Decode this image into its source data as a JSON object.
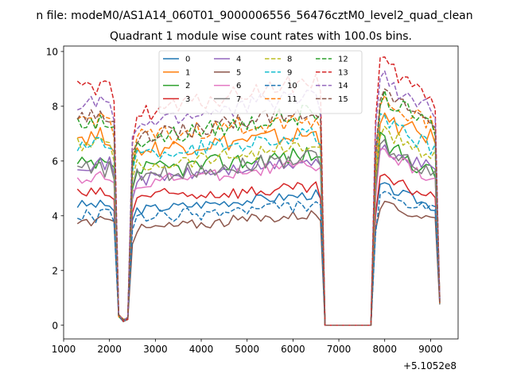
{
  "chart_data": {
    "type": "line",
    "suptitle": "n file: modeM0/AS1A14_060T01_9000006556_56476cztM0_level2_quad_clean",
    "title": "Quadrant 1 module wise count rates with 100.0s bins.",
    "xlabel": "",
    "ylabel": "",
    "x_offset_label": "+5.1052e8",
    "xlim": [
      1000,
      9600
    ],
    "ylim": [
      -0.5,
      10.2
    ],
    "xticks": [
      1000,
      2000,
      3000,
      4000,
      5000,
      6000,
      7000,
      8000,
      9000
    ],
    "xtick_labels": [
      "1000",
      "2000",
      "3000",
      "4000",
      "5000",
      "6000",
      "7000",
      "8000",
      "9000"
    ],
    "yticks": [
      0,
      2,
      4,
      6,
      8,
      10
    ],
    "ytick_labels": [
      "0",
      "2",
      "4",
      "6",
      "8",
      "10"
    ],
    "legend_loc": "upper center",
    "legend_ncol": 4,
    "x": {
      "start": 1300,
      "end": 9200,
      "step": 100
    },
    "segments": [
      {
        "name": "active1",
        "from": 1300,
        "to": 2100
      },
      {
        "name": "dip",
        "points": [
          [
            2200,
            0.35
          ],
          [
            2300,
            0.18
          ],
          [
            2400,
            0.25
          ]
        ]
      },
      {
        "name": "active2",
        "from": 2500,
        "to": 6600
      },
      {
        "name": "zero",
        "from": 6700,
        "to": 7700
      },
      {
        "name": "active3",
        "from": 7800,
        "to": 9100
      },
      {
        "name": "end",
        "points": [
          [
            9200,
            0.9
          ]
        ]
      }
    ],
    "series": [
      {
        "name": "0",
        "color": "#1f77b4",
        "dashed": false,
        "levels": [
          4.4,
          4.2,
          4.8,
          4.3
        ],
        "noise": 0.18
      },
      {
        "name": "1",
        "color": "#ff7f0e",
        "dashed": false,
        "levels": [
          6.9,
          6.4,
          7.0,
          6.8
        ],
        "noise": 0.35
      },
      {
        "name": "2",
        "color": "#2ca02c",
        "dashed": false,
        "levels": [
          5.8,
          5.6,
          6.3,
          5.5
        ],
        "noise": 0.35
      },
      {
        "name": "3",
        "color": "#d62728",
        "dashed": false,
        "levels": [
          4.8,
          4.7,
          5.0,
          4.7
        ],
        "noise": 0.25
      },
      {
        "name": "4",
        "color": "#9467bd",
        "dashed": false,
        "levels": [
          5.9,
          5.3,
          6.0,
          5.7
        ],
        "noise": 0.25
      },
      {
        "name": "5",
        "color": "#8c564b",
        "dashed": false,
        "levels": [
          3.8,
          3.5,
          4.1,
          3.9
        ],
        "noise": 0.2
      },
      {
        "name": "6",
        "color": "#e377c2",
        "dashed": false,
        "levels": [
          5.4,
          5.2,
          5.9,
          5.3
        ],
        "noise": 0.25
      },
      {
        "name": "7",
        "color": "#7f7f7f",
        "dashed": false,
        "levels": [
          5.7,
          5.4,
          6.2,
          5.5
        ],
        "noise": 0.3
      },
      {
        "name": "8",
        "color": "#bcbd22",
        "dashed": true,
        "levels": [
          6.6,
          5.8,
          6.6,
          6.2
        ],
        "noise": 0.3
      },
      {
        "name": "9",
        "color": "#17becf",
        "dashed": true,
        "levels": [
          6.6,
          6.2,
          7.0,
          6.4
        ],
        "noise": 0.3
      },
      {
        "name": "10",
        "color": "#1f77b4",
        "dashed": true,
        "levels": [
          4.0,
          3.9,
          4.4,
          4.1
        ],
        "noise": 0.25
      },
      {
        "name": "11",
        "color": "#ff7f0e",
        "dashed": true,
        "levels": [
          7.5,
          6.8,
          7.6,
          7.3
        ],
        "noise": 0.35
      },
      {
        "name": "12",
        "color": "#2ca02c",
        "dashed": true,
        "levels": [
          7.4,
          6.7,
          7.8,
          7.2
        ],
        "noise": 0.35
      },
      {
        "name": "13",
        "color": "#d62728",
        "dashed": true,
        "levels": [
          8.6,
          7.7,
          9.0,
          8.1
        ],
        "noise": 0.35
      },
      {
        "name": "14",
        "color": "#9467bd",
        "dashed": true,
        "levels": [
          8.1,
          7.3,
          8.5,
          7.7
        ],
        "noise": 0.35
      },
      {
        "name": "15",
        "color": "#8c564b",
        "dashed": true,
        "levels": [
          7.6,
          6.8,
          7.9,
          7.3
        ],
        "noise": 0.3
      }
    ]
  }
}
